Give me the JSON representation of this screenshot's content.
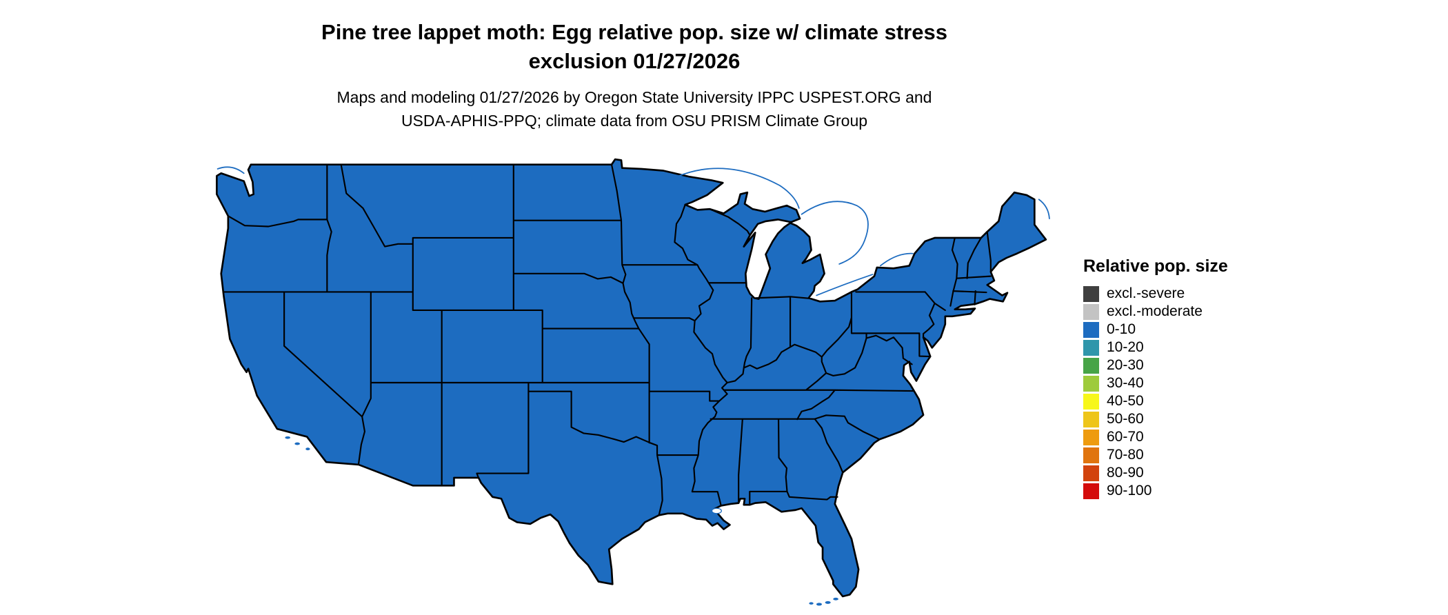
{
  "title": {
    "line1": "Pine tree lappet moth: Egg relative pop. size w/ climate stress",
    "line2": "exclusion 01/27/2026"
  },
  "subtitle": {
    "line1": "Maps and modeling 01/27/2026 by Oregon State University IPPC USPEST.ORG and",
    "line2": "USDA-APHIS-PPQ; climate data from OSU PRISM Climate Group"
  },
  "legend": {
    "title": "Relative pop. size",
    "items": [
      {
        "label": "excl.-severe",
        "color": "#3f3f3f"
      },
      {
        "label": "excl.-moderate",
        "color": "#c3c3c3"
      },
      {
        "label": "0-10",
        "color": "#1d6cc0"
      },
      {
        "label": "10-20",
        "color": "#2f96ab"
      },
      {
        "label": "20-30",
        "color": "#47a447"
      },
      {
        "label": "30-40",
        "color": "#9ecb3b"
      },
      {
        "label": "40-50",
        "color": "#f7f71a"
      },
      {
        "label": "50-60",
        "color": "#eec51a"
      },
      {
        "label": "60-70",
        "color": "#ee9b0f"
      },
      {
        "label": "70-80",
        "color": "#e0740e"
      },
      {
        "label": "80-90",
        "color": "#d2430d"
      },
      {
        "label": "90-100",
        "color": "#d40b0b"
      }
    ]
  },
  "map": {
    "fill_color": "#1d6cc0",
    "border_color": "#000000"
  },
  "map_data": {
    "type": "choropleth",
    "region": "Contiguous United States with state boundaries",
    "legend_position": "right",
    "all_states_value_class": "0-10",
    "classes": [
      "excl.-severe",
      "excl.-moderate",
      "0-10",
      "10-20",
      "20-30",
      "30-40",
      "40-50",
      "50-60",
      "60-70",
      "70-80",
      "80-90",
      "90-100"
    ]
  }
}
